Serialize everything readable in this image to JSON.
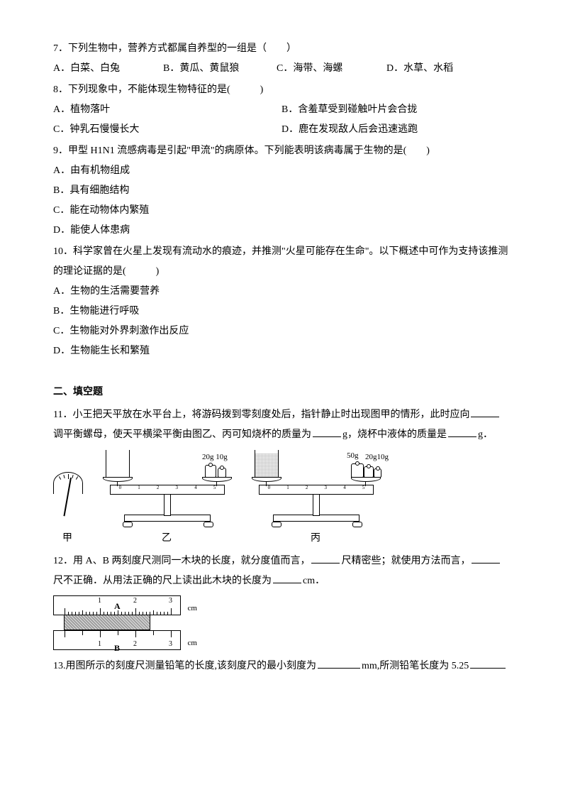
{
  "colors": {
    "text": "#000000",
    "bg": "#ffffff"
  },
  "fontsize": 14,
  "q7": {
    "text": "7．下列生物中，营养方式都属自养型的一组是（　　）",
    "A": "A．白菜、白兔",
    "B": "B．黄瓜、黄鼠狼",
    "C": "C．海带、海螺",
    "D": "D．水草、水稻"
  },
  "q8": {
    "text": "8．下列现象中，不能体现生物特征的是(　　　)",
    "A": "A．植物落叶",
    "B": "B．含羞草受到碰触叶片会合拢",
    "C": "C．钟乳石慢慢长大",
    "D": "D．鹿在发现敌人后会迅速逃跑"
  },
  "q9": {
    "text": "9．甲型 H1N1 流感病毒是引起\"甲流\"的病原体。下列能表明该病毒属于生物的是(　　)",
    "A": "A．由有机物组成",
    "B": "B．具有细胞结构",
    "C": "C．能在动物体内繁殖",
    "D": "D．能使人体患病"
  },
  "q10": {
    "text": "10．科学家曾在火星上发现有流动水的痕迹，并推测\"火星可能存在生命\"。以下概述中可作为支持该推测的理论证据的是(　　　)",
    "A": "A．生物的生活需要营养",
    "B": "B．生物能进行呼吸",
    "C": "C．生物能对外界刺激作出反应",
    "D": "D．生物能生长和繁殖"
  },
  "section2": "二、填空题",
  "q11": {
    "pre": "11．小王把天平放在水平台上，将游码拨到零刻度处后，指针静止时出现图甲的情形，此时应向",
    "mid1": "调平衡螺母，使天平横梁平衡由图乙、丙可知烧杯的质量为",
    "mid2": "g，烧杯中液体的质量是",
    "post": "g．",
    "labels": {
      "jia": "甲",
      "yi": "乙",
      "bing": "丙"
    },
    "weights_yi": "20g 10g",
    "weights_bing1": "50g",
    "weights_bing2": "20g10g"
  },
  "q12": {
    "pre": "12．用 A、B 两刻度尺测同一木块的长度，就分度值而言，",
    "mid1": "尺精密些；就使用方法而言，",
    "mid2": "尺不正确．从用法正确的尺上读出此木块的长度为",
    "post": "cm．",
    "rulerA": "A",
    "rulerB": "B",
    "unit": "cm",
    "ticks": [
      "1",
      "2",
      "3"
    ]
  },
  "q13": {
    "pre": "13.用图所示的刻度尺测量铅笔的长度,该刻度尺的最小刻度为",
    "mid": "mm,所测铅笔长度为 5.25"
  }
}
